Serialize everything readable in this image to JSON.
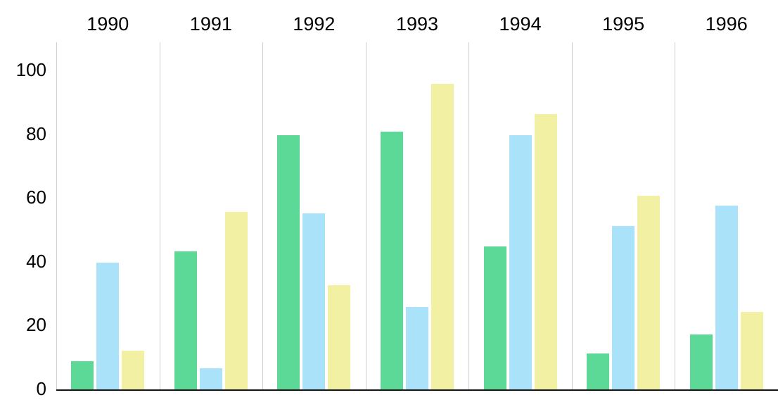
{
  "chart_data": {
    "type": "bar",
    "title": "",
    "xlabel": "",
    "ylabel": "",
    "categories": [
      "1990",
      "1991",
      "1992",
      "1993",
      "1994",
      "1995",
      "1996"
    ],
    "series": [
      {
        "name": "series-green",
        "color": "#5dd997",
        "values": [
          8.5,
          43,
          79.5,
          80.5,
          44.5,
          11,
          17
        ]
      },
      {
        "name": "series-blue",
        "color": "#a9e2f9",
        "values": [
          39.5,
          6.5,
          55,
          25.5,
          79.5,
          51,
          57.5
        ]
      },
      {
        "name": "series-yellow",
        "color": "#f2f0a2",
        "values": [
          12,
          55.5,
          32.5,
          95.5,
          86,
          60.5,
          24
        ]
      }
    ],
    "yticks": [
      0,
      20,
      40,
      60,
      80,
      100
    ],
    "ylim": [
      0,
      108
    ],
    "grid": "vertical-category-separators",
    "legend": "none",
    "colors": {
      "gridline": "#cfcfcf",
      "axis_line": "#141414",
      "text": "#000000",
      "background": "#ffffff"
    }
  }
}
